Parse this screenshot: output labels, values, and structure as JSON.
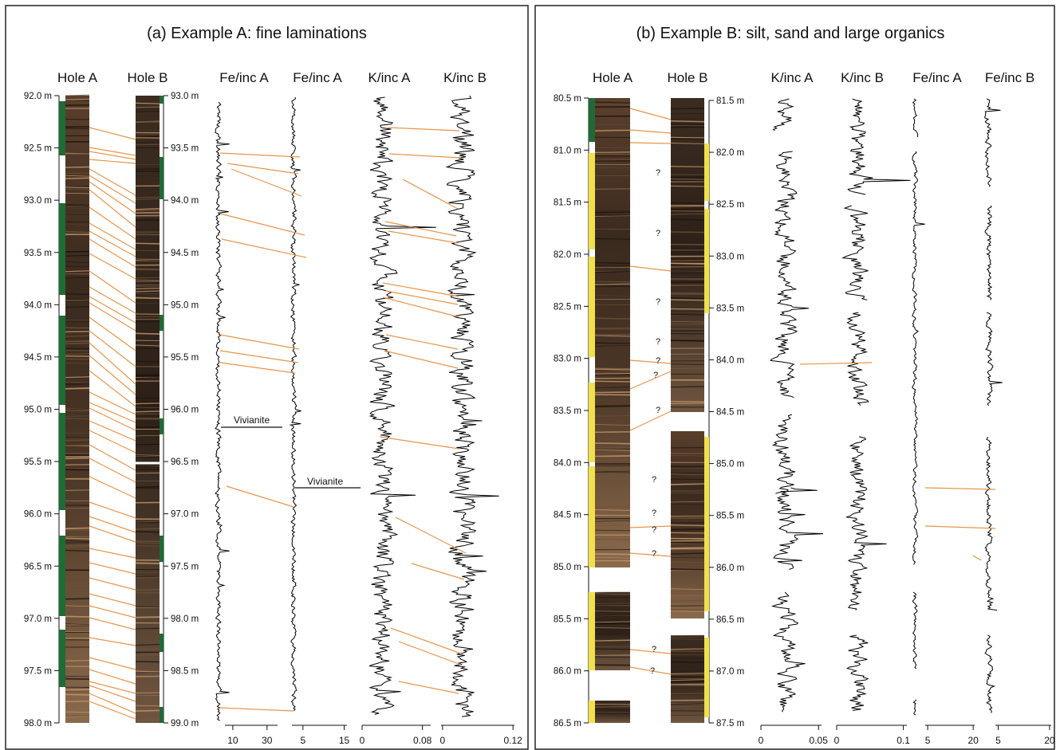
{
  "chart_data": [
    {
      "type": "line",
      "title": "(a) Example A: fine laminations",
      "column_labels": [
        "Hole A",
        "Hole B",
        "Fe/inc A",
        "Fe/inc A",
        "K/inc A",
        "K/inc B"
      ],
      "depth_axis_holeA": {
        "unit": "m",
        "range": [
          92.0,
          98.0
        ],
        "ticks": [
          "92.0 m",
          "92.5 m",
          "93.0 m",
          "93.5 m",
          "94.0 m",
          "94.5 m",
          "95.0 m",
          "95.5 m",
          "96.0 m",
          "96.5 m",
          "97.0 m",
          "97.5 m",
          "98.0 m"
        ]
      },
      "depth_axis_holeB": {
        "unit": "m",
        "range": [
          93.0,
          99.0
        ],
        "ticks": [
          "93.0 m",
          "93.5 m",
          "94.0 m",
          "94.5 m",
          "95.0 m",
          "95.5 m",
          "96.0 m",
          "96.5 m",
          "97.0 m",
          "97.5 m",
          "98.0 m",
          "98.5 m",
          "99.0 m"
        ]
      },
      "x_axes": [
        {
          "series": "Fe/inc A",
          "ticks": [
            "10",
            "30"
          ],
          "range": [
            0,
            45
          ]
        },
        {
          "series": "Fe/inc A",
          "ticks": [
            "5",
            "15"
          ],
          "range": [
            0,
            18
          ]
        },
        {
          "series": "K/inc A",
          "ticks": [
            "0",
            "0.08"
          ],
          "range": [
            0,
            0.1
          ]
        },
        {
          "series": "K/inc B",
          "ticks": [
            "0",
            "0.12"
          ],
          "range": [
            0,
            0.12
          ]
        }
      ],
      "annotations": [
        "Vivianite",
        "Vivianite"
      ],
      "colors": {
        "tie_line": "#e8954a",
        "green_segment": "#1f6b35",
        "trace": "#000000"
      }
    },
    {
      "type": "line",
      "title": "(b) Example B: silt, sand and large organics",
      "column_labels": [
        "Hole A",
        "Hole B",
        "K/inc A",
        "K/inc B",
        "Fe/inc A",
        "Fe/inc B"
      ],
      "depth_axis_holeA": {
        "unit": "m",
        "range": [
          80.5,
          86.5
        ],
        "ticks": [
          "80.5 m",
          "81.0 m",
          "81.5 m",
          "82.0 m",
          "82.5 m",
          "83.0 m",
          "83.5 m",
          "84.0 m",
          "84.5 m",
          "85.0 m",
          "85.5 m",
          "86.0 m",
          "86.5 m"
        ]
      },
      "depth_axis_holeB": {
        "unit": "m",
        "range": [
          81.5,
          87.5
        ],
        "ticks": [
          "81.5 m",
          "82.0 m",
          "82.5 m",
          "83.0 m",
          "83.5 m",
          "84.0 m",
          "84.5 m",
          "85.0 m",
          "85.5 m",
          "86.0 m",
          "86.5 m",
          "87.0 m",
          "87.5 m"
        ]
      },
      "x_axes": [
        {
          "series": "K/inc A",
          "ticks": [
            "0",
            "0.05"
          ],
          "range": [
            0,
            0.05
          ]
        },
        {
          "series": "K/inc B",
          "ticks": [
            "0",
            "0.1"
          ],
          "range": [
            0,
            0.1
          ]
        },
        {
          "series": "Fe/inc A",
          "ticks": [
            "5",
            "20"
          ],
          "range": [
            0,
            20
          ]
        },
        {
          "series": "Fe/inc B",
          "ticks": [
            "5",
            "20"
          ],
          "range": [
            0,
            20
          ]
        }
      ],
      "uncertain_tie_marker": "?",
      "colors": {
        "tie_line": "#e8954a",
        "green_segment": "#1f6b35",
        "yellow_segment": "#f2e04a",
        "trace": "#000000"
      }
    }
  ]
}
